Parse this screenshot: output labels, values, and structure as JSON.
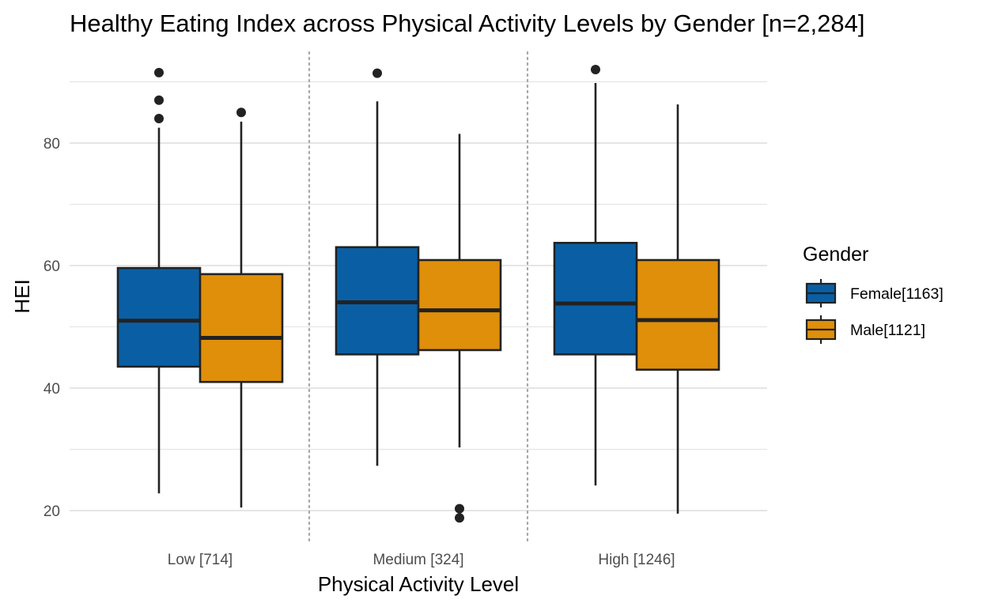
{
  "chart_data": {
    "type": "box",
    "title": "Healthy Eating Index across Physical Activity Levels by Gender [n=2,284]",
    "xlabel": "Physical Activity Level",
    "ylabel": "HEI",
    "ylim": [
      15,
      94
    ],
    "yticks": [
      20,
      40,
      60,
      80
    ],
    "grid": true,
    "legend": {
      "title": "Gender",
      "position": "right",
      "entries": [
        "Female[1163]",
        "Male[1121]"
      ]
    },
    "categories": [
      "Low [714]",
      "Medium [324]",
      "High [1246]"
    ],
    "series": [
      {
        "name": "Female[1163]",
        "color": "#0a5fa4",
        "boxes": [
          {
            "whisker_low": 22.8,
            "q1": 43.5,
            "median": 51.0,
            "q3": 59.6,
            "whisker_high": 82.5,
            "outliers": [
              84.0,
              87.0,
              91.5
            ]
          },
          {
            "whisker_low": 27.3,
            "q1": 45.5,
            "median": 54.0,
            "q3": 63.0,
            "whisker_high": 86.8,
            "outliers": [
              91.4
            ]
          },
          {
            "whisker_low": 24.1,
            "q1": 45.5,
            "median": 53.8,
            "q3": 63.7,
            "whisker_high": 89.8,
            "outliers": [
              92.0
            ]
          }
        ]
      },
      {
        "name": "Male[1121]",
        "color": "#df8f0a",
        "boxes": [
          {
            "whisker_low": 20.5,
            "q1": 41.0,
            "median": 48.2,
            "q3": 58.6,
            "whisker_high": 83.5,
            "outliers": [
              85.0
            ]
          },
          {
            "whisker_low": 30.3,
            "q1": 46.2,
            "median": 52.7,
            "q3": 60.9,
            "whisker_high": 81.5,
            "outliers": [
              18.8,
              20.3
            ]
          },
          {
            "whisker_low": 19.5,
            "q1": 43.0,
            "median": 51.1,
            "q3": 60.9,
            "whisker_high": 86.3,
            "outliers": []
          }
        ]
      }
    ]
  }
}
